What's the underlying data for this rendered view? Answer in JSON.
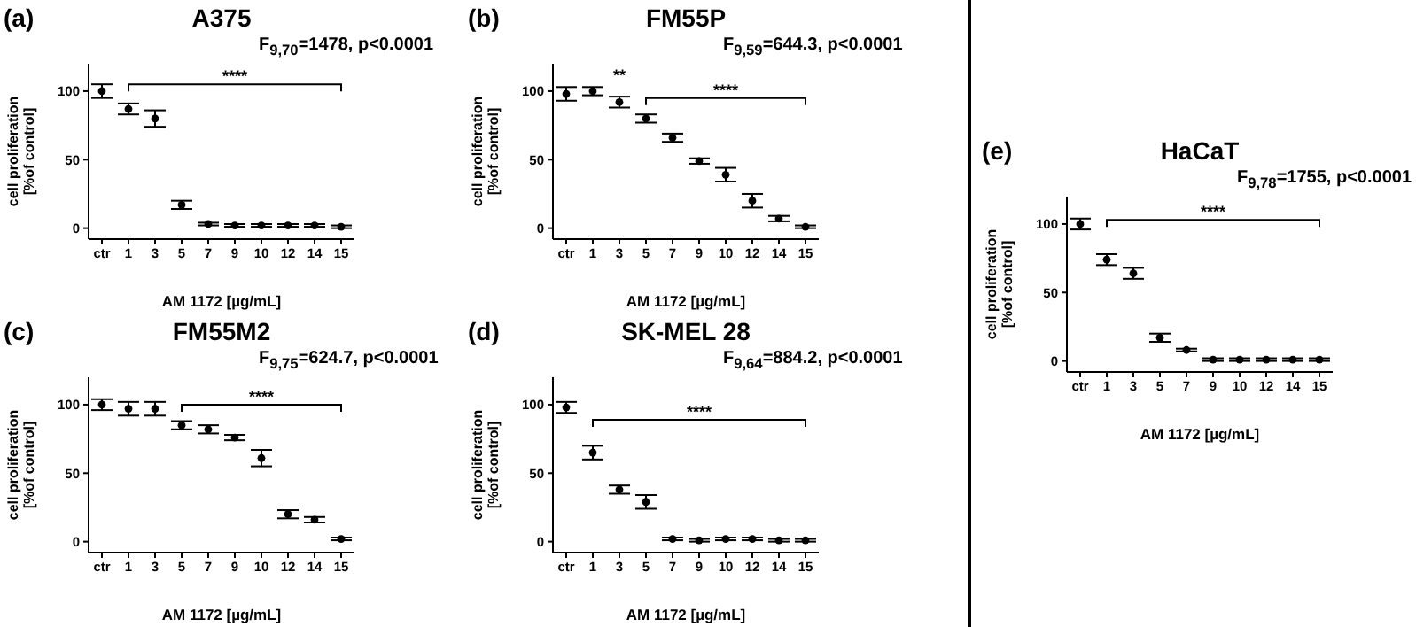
{
  "chart_data": [
    {
      "type": "scatter",
      "title": "A375",
      "subtitle": "F$_{9,70}$=1478, p<0.0001",
      "xlabel": "AM 1172 [µg/mL]",
      "ylabel": "cell proliferation\n[%of control]",
      "categories": [
        "ctr",
        "1",
        "3",
        "5",
        "7",
        "9",
        "10",
        "12",
        "14",
        "15"
      ],
      "values": [
        100,
        87,
        80,
        17,
        3,
        2,
        2,
        2,
        2,
        1
      ],
      "errors": [
        5,
        4,
        6,
        3,
        1,
        1,
        1,
        1,
        1,
        1
      ],
      "color": "#000000",
      "marker": "circle",
      "ylim": [
        -8,
        120
      ],
      "yticks": [
        0,
        50,
        100
      ],
      "annotations": [
        "(a)",
        "****"
      ]
    },
    {
      "type": "scatter",
      "title": "FM55P",
      "subtitle": "F$_{9,59}$=644.3, p<0.0001",
      "xlabel": "AM 1172 [µg/mL]",
      "ylabel": "cell proliferation\n[%of control]",
      "categories": [
        "ctr",
        "1",
        "3",
        "5",
        "7",
        "9",
        "10",
        "12",
        "14",
        "15"
      ],
      "values": [
        98,
        100,
        92,
        80,
        66,
        49,
        39,
        20,
        7,
        1
      ],
      "errors": [
        5,
        3,
        4,
        3,
        3,
        2,
        5,
        5,
        2,
        1
      ],
      "color": "#000000",
      "marker": "circle",
      "ylim": [
        -8,
        120
      ],
      "yticks": [
        0,
        50,
        100
      ],
      "annotations": [
        "(b)",
        "**",
        "****"
      ]
    },
    {
      "type": "scatter",
      "title": "FM55M2",
      "subtitle": "F$_{9,75}$=624.7, p<0.0001",
      "xlabel": "AM 1172 [µg/mL]",
      "ylabel": "cell proliferation\n[%of control]",
      "categories": [
        "ctr",
        "1",
        "3",
        "5",
        "7",
        "9",
        "10",
        "12",
        "14",
        "15"
      ],
      "values": [
        100,
        97,
        97,
        85,
        82,
        76,
        61,
        20,
        16,
        2
      ],
      "errors": [
        4,
        5,
        5,
        3,
        3,
        2,
        6,
        3,
        2,
        1
      ],
      "color": "#000000",
      "marker": "circle",
      "ylim": [
        -8,
        120
      ],
      "yticks": [
        0,
        50,
        100
      ],
      "annotations": [
        "(c)",
        "****"
      ]
    },
    {
      "type": "scatter",
      "title": "SK-MEL 28",
      "subtitle": "F$_{9,64}$=884.2, p<0.0001",
      "xlabel": "AM 1172 [µg/mL]",
      "ylabel": "cell proliferation\n[%of control]",
      "categories": [
        "ctr",
        "1",
        "3",
        "5",
        "7",
        "9",
        "10",
        "12",
        "14",
        "15"
      ],
      "values": [
        98,
        65,
        38,
        29,
        2,
        1,
        2,
        2,
        1,
        1
      ],
      "errors": [
        4,
        5,
        3,
        5,
        1,
        1,
        1,
        1,
        1,
        1
      ],
      "color": "#000000",
      "marker": "circle",
      "ylim": [
        -8,
        120
      ],
      "yticks": [
        0,
        50,
        100
      ],
      "annotations": [
        "(d)",
        "****"
      ]
    },
    {
      "type": "scatter",
      "title": "HaCaT",
      "subtitle": "F$_{9,78}$=1755, p<0.0001",
      "xlabel": "AM 1172 [µg/mL]",
      "ylabel": "cell proliferation\n[%of control]",
      "categories": [
        "ctr",
        "1",
        "3",
        "5",
        "7",
        "9",
        "10",
        "12",
        "14",
        "15"
      ],
      "values": [
        100,
        74,
        64,
        17,
        8,
        1,
        1,
        1,
        1,
        1
      ],
      "errors": [
        4,
        4,
        4,
        3,
        1,
        1,
        1,
        1,
        1,
        1
      ],
      "color": "#000000",
      "marker": "circle",
      "ylim": [
        -8,
        120
      ],
      "yticks": [
        0,
        50,
        100
      ],
      "annotations": [
        "(e)",
        "****"
      ]
    }
  ]
}
